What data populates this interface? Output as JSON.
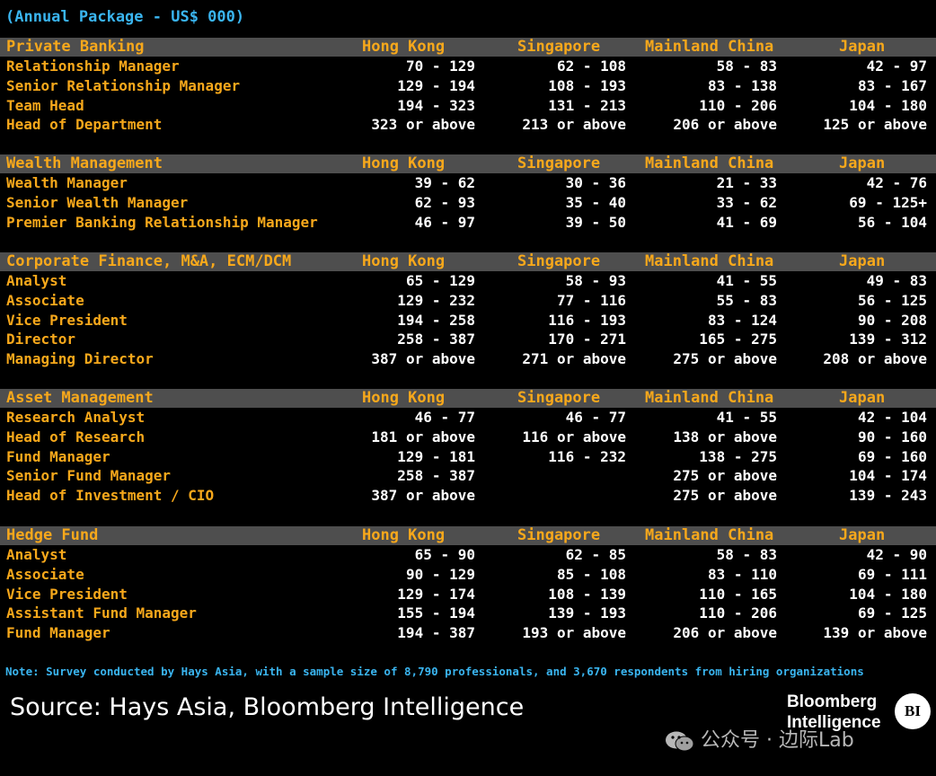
{
  "title": "(Annual Package - US$ 000)",
  "columns": [
    "Hong Kong",
    "Singapore",
    "Mainland China",
    "Japan"
  ],
  "sections": [
    {
      "name": "Private Banking",
      "rows": [
        {
          "role": "Relationship Manager",
          "values": [
            "70 - 129",
            "62 - 108",
            "58 - 83",
            "42 - 97"
          ]
        },
        {
          "role": "Senior Relationship Manager",
          "values": [
            "129 - 194",
            "108 - 193",
            "83 - 138",
            "83 - 167"
          ]
        },
        {
          "role": "Team Head",
          "values": [
            "194 - 323",
            "131 - 213",
            "110 - 206",
            "104 - 180"
          ]
        },
        {
          "role": "Head of Department",
          "values": [
            "323 or above",
            "213 or above",
            "206 or above",
            "125 or above"
          ]
        }
      ]
    },
    {
      "name": "Wealth Management",
      "rows": [
        {
          "role": "Wealth Manager",
          "values": [
            "39 - 62",
            "30 - 36",
            "21 - 33",
            "42 - 76"
          ]
        },
        {
          "role": "Senior Wealth Manager",
          "values": [
            "62 - 93",
            "35 - 40",
            "33 - 62",
            "69 - 125+"
          ]
        },
        {
          "role": "Premier Banking Relationship Manager",
          "values": [
            "46 - 97",
            "39 - 50",
            "41 - 69",
            "56 - 104"
          ]
        }
      ]
    },
    {
      "name": "Corporate Finance, M&A, ECM/DCM",
      "rows": [
        {
          "role": "Analyst",
          "values": [
            "65 - 129",
            "58 - 93",
            "41 - 55",
            "49 - 83"
          ]
        },
        {
          "role": "Associate",
          "values": [
            "129 - 232",
            "77 - 116",
            "55 - 83",
            "56 - 125"
          ]
        },
        {
          "role": "Vice President",
          "values": [
            "194 - 258",
            "116 - 193",
            "83 - 124",
            "90 - 208"
          ]
        },
        {
          "role": "Director",
          "values": [
            "258 - 387",
            "170 - 271",
            "165 - 275",
            "139 - 312"
          ]
        },
        {
          "role": "Managing Director",
          "values": [
            "387 or above",
            "271 or above",
            "275 or above",
            "208 or above"
          ]
        }
      ]
    },
    {
      "name": "Asset Management",
      "rows": [
        {
          "role": "Research Analyst",
          "values": [
            "46 - 77",
            "46 - 77",
            "41 - 55",
            "42 - 104"
          ]
        },
        {
          "role": "Head of Research",
          "values": [
            "181 or above",
            "116 or above",
            "138 or above",
            "90 - 160"
          ]
        },
        {
          "role": "Fund Manager",
          "values": [
            "129 - 181",
            "116 - 232",
            "138 - 275",
            "69 - 160"
          ]
        },
        {
          "role": "Senior Fund Manager",
          "values": [
            "258 - 387",
            "",
            "275 or above",
            "104 - 174"
          ]
        },
        {
          "role": "Head of Investment / CIO",
          "values": [
            "387 or above",
            "",
            "275 or above",
            "139 - 243"
          ]
        }
      ]
    },
    {
      "name": "Hedge Fund",
      "rows": [
        {
          "role": "Analyst",
          "values": [
            "65 - 90",
            "62 - 85",
            "58 - 83",
            "42 - 90"
          ]
        },
        {
          "role": "Associate",
          "values": [
            "90 - 129",
            "85 - 108",
            "83 - 110",
            "69 - 111"
          ]
        },
        {
          "role": "Vice President",
          "values": [
            "129 - 174",
            "108 - 139",
            "110 - 165",
            "104 - 180"
          ]
        },
        {
          "role": "Assistant Fund Manager",
          "values": [
            "155 - 194",
            "139 - 193",
            "110 - 206",
            "69 - 125"
          ]
        },
        {
          "role": "Fund Manager",
          "values": [
            "194 - 387",
            "193 or above",
            "206 or above",
            "139 or above"
          ]
        }
      ]
    }
  ],
  "note": "Note: Survey conducted by Hays Asia, with a sample size of 8,790 professionals, and 3,670 respondents from hiring organizations",
  "source": "Source: Hays Asia, Bloomberg Intelligence",
  "logo": {
    "line1": "Bloomberg",
    "line2": "Intelligence",
    "badge": "BI"
  },
  "watermark": "公众号 · 边际Lab",
  "colors": {
    "header": "#f7a81b",
    "title": "#3ab5f0",
    "band": "#4e4e4e",
    "value": "#ffffff"
  }
}
